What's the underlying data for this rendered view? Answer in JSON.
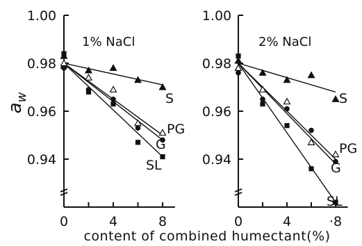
{
  "chart_data": {
    "type": "scatter",
    "ylabel": "a_w",
    "xlabel": "content of combined humectant(%)",
    "panels": [
      {
        "title": "1% NaCl",
        "xlim": [
          0,
          9
        ],
        "ylim": [
          0.92,
          1.0
        ],
        "xticks": [
          0,
          4,
          8
        ],
        "yticks": [
          0.94,
          0.96,
          0.98,
          1.0
        ],
        "ytick_labels": [
          "0.94",
          "0.96",
          "0.98",
          "1.00"
        ],
        "series": [
          {
            "name": "S",
            "marker": "filled-triangle",
            "x": [
              0,
              0,
              2,
              4,
              6,
              8
            ],
            "y": [
              0.983,
              0.979,
              0.977,
              0.978,
              0.973,
              0.97
            ],
            "fit": {
              "x": [
                0,
                8
              ],
              "y": [
                0.98,
                0.971
              ]
            }
          },
          {
            "name": "PG",
            "marker": "open-triangle",
            "x": [
              0,
              2,
              4,
              6,
              8
            ],
            "y": [
              0.98,
              0.974,
              0.969,
              0.955,
              0.951
            ],
            "fit": {
              "x": [
                0,
                8
              ],
              "y": [
                0.98,
                0.95
              ]
            }
          },
          {
            "name": "G",
            "marker": "filled-circle",
            "x": [
              0,
              2,
              4,
              6,
              8
            ],
            "y": [
              0.978,
              0.969,
              0.965,
              0.953,
              0.948
            ],
            "fit": {
              "x": [
                0,
                8
              ],
              "y": [
                0.98,
                0.948
              ]
            }
          },
          {
            "name": "SL",
            "marker": "filled-square",
            "x": [
              0,
              2,
              4,
              6,
              8
            ],
            "y": [
              0.984,
              0.968,
              0.963,
              0.947,
              0.941
            ],
            "fit": {
              "x": [
                0,
                8
              ],
              "y": [
                0.98,
                0.941
              ]
            }
          }
        ]
      },
      {
        "title": "2% NaCl",
        "xlim": [
          0,
          9
        ],
        "ylim": [
          0.92,
          1.0
        ],
        "xticks": [
          0,
          4,
          8
        ],
        "yticks": [
          0.94,
          0.96,
          0.98,
          1.0
        ],
        "ytick_labels": [
          "0.94",
          "0.96",
          "0.98",
          "1.00"
        ],
        "series": [
          {
            "name": "S",
            "marker": "filled-triangle",
            "x": [
              0,
              2,
              4,
              6,
              8
            ],
            "y": [
              0.981,
              0.976,
              0.973,
              0.975,
              0.965
            ],
            "fit": {
              "x": [
                0,
                8
              ],
              "y": [
                0.98,
                0.968
              ]
            }
          },
          {
            "name": "PG",
            "marker": "open-triangle",
            "x": [
              0,
              2,
              4,
              6,
              8
            ],
            "y": [
              0.978,
              0.969,
              0.964,
              0.947,
              0.942
            ],
            "fit": {
              "x": [
                0,
                8
              ],
              "y": [
                0.98,
                0.94
              ]
            }
          },
          {
            "name": "G",
            "marker": "filled-circle",
            "x": [
              0,
              2,
              4,
              6,
              8
            ],
            "y": [
              0.976,
              0.965,
              0.961,
              0.952,
              0.939
            ],
            "fit": {
              "x": [
                0,
                8
              ],
              "y": [
                0.98,
                0.938
              ]
            }
          },
          {
            "name": "SL",
            "marker": "filled-square",
            "x": [
              0,
              2,
              4,
              6,
              8
            ],
            "y": [
              0.983,
              0.963,
              0.954,
              0.936,
              0.922
            ],
            "fit": {
              "x": [
                0,
                8
              ],
              "y": [
                0.98,
                0.922
              ]
            }
          }
        ]
      }
    ]
  }
}
